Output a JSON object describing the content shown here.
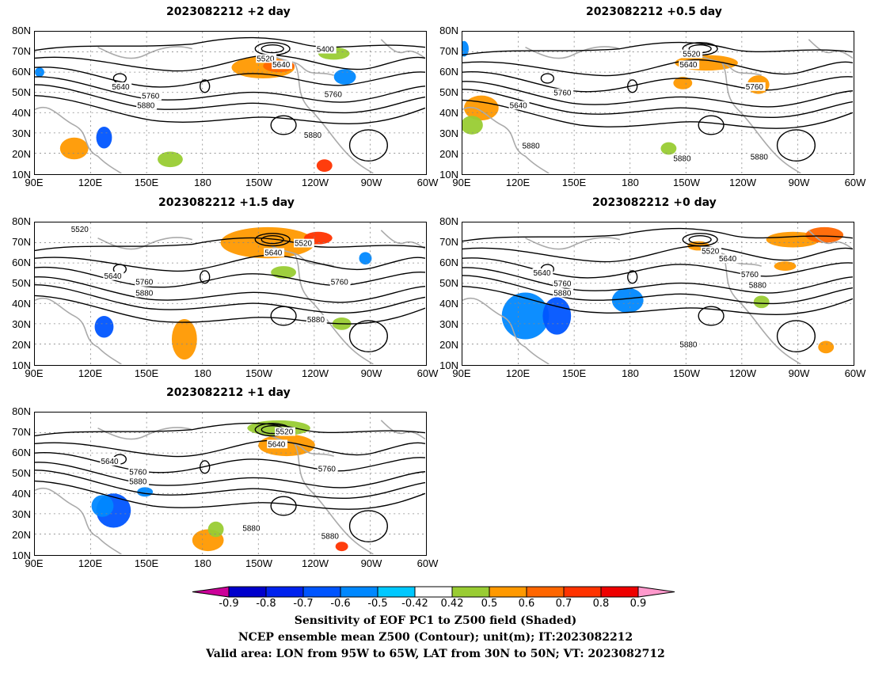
{
  "panels": [
    {
      "id": "p2",
      "title": "2023082212 +2 day",
      "contour_labels": [
        "5400",
        "5520",
        "5640",
        "5640",
        "5760",
        "5760",
        "5880",
        "5880"
      ]
    },
    {
      "id": "p05",
      "title": "2023082212 +0.5 day",
      "contour_labels": [
        "5520",
        "5640",
        "5640",
        "5760",
        "5760",
        "5880",
        "5880",
        "5880"
      ]
    },
    {
      "id": "p15",
      "title": "2023082212 +1.5 day",
      "contour_labels": [
        "5520",
        "5520",
        "5640",
        "5640",
        "5760",
        "5760",
        "5880",
        "5880"
      ]
    },
    {
      "id": "p0",
      "title": "2023082212 +0 day",
      "contour_labels": [
        "5520",
        "5640",
        "5640",
        "5760",
        "5760",
        "5880",
        "5880",
        "5880"
      ]
    },
    {
      "id": "p1",
      "title": "2023082212 +1 day",
      "contour_labels": [
        "5520",
        "5640",
        "5640",
        "5760",
        "5760",
        "5880",
        "5880",
        "5880"
      ]
    }
  ],
  "lat_labels": [
    "80N",
    "70N",
    "60N",
    "50N",
    "40N",
    "30N",
    "20N",
    "10N"
  ],
  "lon_labels": [
    "90E",
    "120E",
    "150E",
    "180",
    "150W",
    "120W",
    "90W",
    "60W"
  ],
  "colorbar": {
    "ticks": [
      "-0.9",
      "-0.8",
      "-0.7",
      "-0.6",
      "-0.5",
      "-0.42",
      "0.42",
      "0.5",
      "0.6",
      "0.7",
      "0.8",
      "0.9"
    ],
    "colors": [
      "#cc0099",
      "#0000cc",
      "#0022ee",
      "#0055ff",
      "#0088ff",
      "#00c8ff",
      "#ffffff",
      "#99cc33",
      "#ff9900",
      "#ff6600",
      "#ff3300",
      "#ee0000",
      "#ff99cc"
    ]
  },
  "caption": {
    "line1": "Sensitivity of EOF PC1 to Z500 field (Shaded)",
    "line2": "NCEP ensemble mean Z500 (Contour); unit(m); IT:2023082212",
    "line3": "Valid area: LON from 95W to 65W, LAT from 30N to 50N; VT: 2023082712"
  },
  "map_colors": {
    "contour": "#000000",
    "coast": "#aaaaaa",
    "grid": "#888888"
  }
}
